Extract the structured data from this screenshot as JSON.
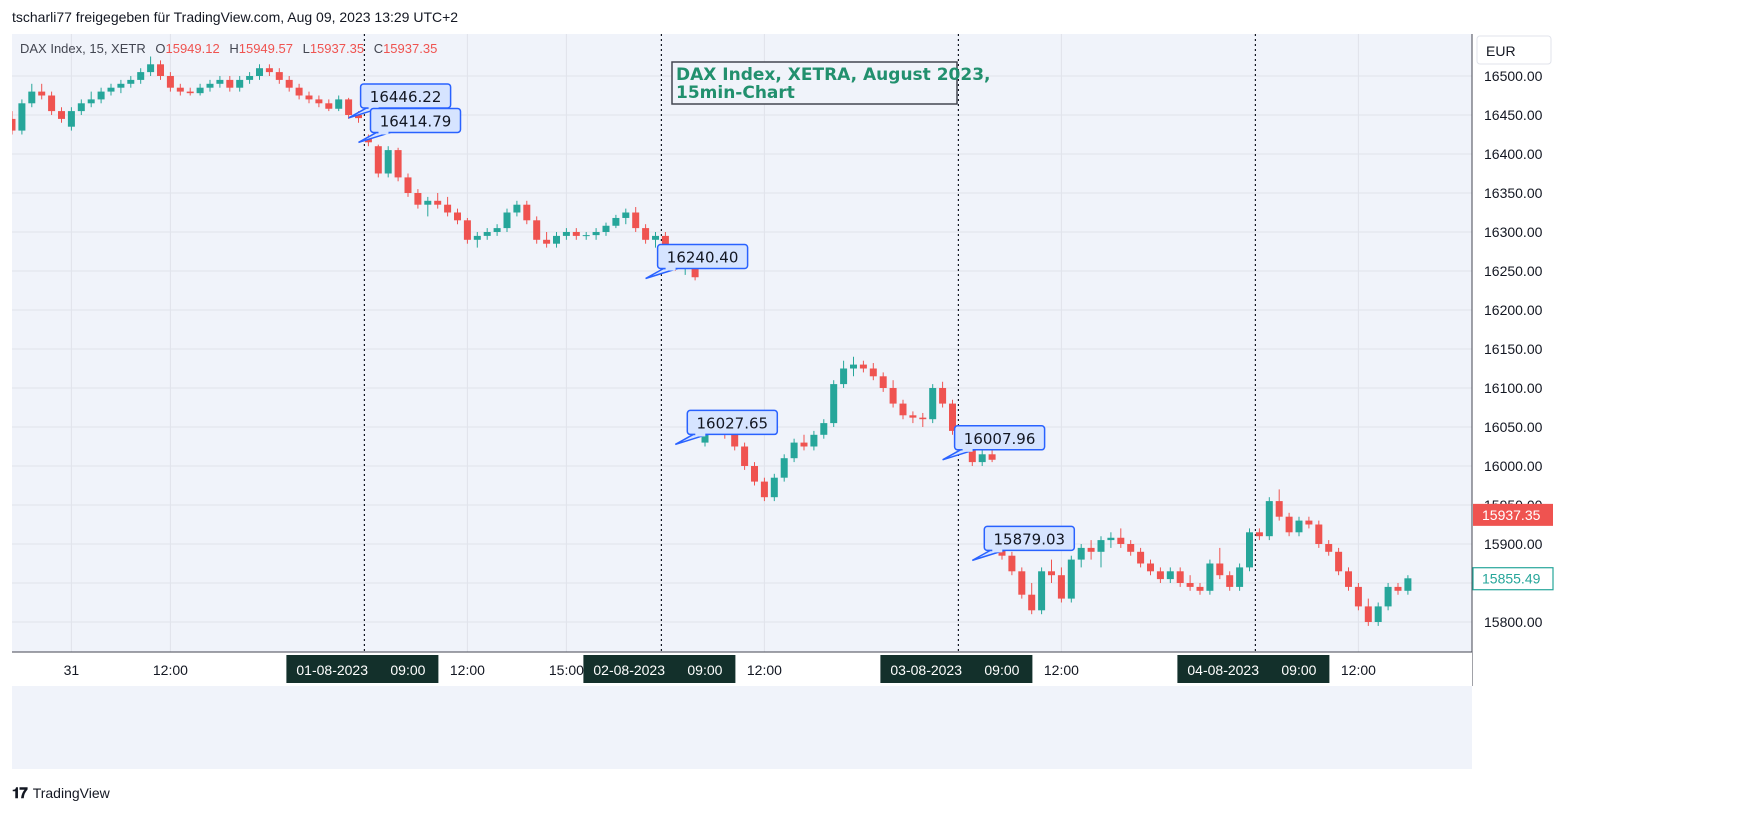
{
  "header": {
    "attribution": "tscharli77 freigegeben für TradingView.com, Aug 09, 2023 13:29 UTC+2"
  },
  "footer": {
    "brand": "TradingView",
    "logo_icon": "tradingview-logo-icon"
  },
  "legend": {
    "symbol": "DAX Index, 15, XETR",
    "o_label": "O",
    "o_value": "15949.12",
    "h_label": "H",
    "h_value": "15949.57",
    "l_label": "L",
    "l_value": "15937.35",
    "c_label": "C",
    "c_value": "15937.35"
  },
  "currency": "EUR",
  "colors": {
    "up": "#26a69a",
    "down": "#ef5350",
    "callout_fill": "#d6e4ff",
    "callout_stroke": "#2962ff",
    "title_text": "#22906e",
    "date_badge": "#13302b",
    "price_tag_red": "#ef5350",
    "price_tag_green": "#26a69a"
  },
  "chart_data": {
    "type": "candlestick",
    "title": "DAX Index, XETRA, August 2023, 15min-Chart",
    "ylim": [
      15750,
      16530
    ],
    "y_ticks": [
      "16500.00",
      "16450.00",
      "16400.00",
      "16350.00",
      "16300.00",
      "16250.00",
      "16200.00",
      "16150.00",
      "16100.00",
      "16050.00",
      "16000.00",
      "15950.00",
      "15900.00",
      "15850.00",
      "15800.00"
    ],
    "x_ticks": [
      {
        "label": "31",
        "bar": 6
      },
      {
        "label": "12:00",
        "bar": 16
      },
      {
        "label": "12:00",
        "bar": 46
      },
      {
        "label": "15:00",
        "bar": 56
      },
      {
        "label": "12:00",
        "bar": 76
      },
      {
        "label": "12:00",
        "bar": 106
      },
      {
        "label": "12:00",
        "bar": 136
      }
    ],
    "session_markers": [
      {
        "date": "01-08-2023",
        "time": "09:00",
        "bar": 36
      },
      {
        "date": "02-08-2023",
        "time": "09:00",
        "bar": 66
      },
      {
        "date": "03-08-2023",
        "time": "09:00",
        "bar": 96
      },
      {
        "date": "04-08-2023",
        "time": "09:00",
        "bar": 126
      }
    ],
    "price_tags": [
      {
        "value": "15937.35",
        "price": 15937.35,
        "style": "down"
      },
      {
        "value": "15855.49",
        "price": 15855.49,
        "style": "up"
      }
    ],
    "annotations": [
      {
        "text": "16446.22",
        "bar": 34,
        "price": 16446.22
      },
      {
        "text": "16414.79",
        "bar": 35,
        "price": 16414.79
      },
      {
        "text": "16240.40",
        "bar": 64,
        "price": 16240.4
      },
      {
        "text": "16027.65",
        "bar": 67,
        "price": 16027.65
      },
      {
        "text": "16007.96",
        "bar": 94,
        "price": 16007.96
      },
      {
        "text": "15879.03",
        "bar": 97,
        "price": 15879.03
      }
    ],
    "candles": [
      [
        16445,
        16455,
        16425,
        16430
      ],
      [
        16430,
        16470,
        16425,
        16465
      ],
      [
        16465,
        16490,
        16460,
        16480
      ],
      [
        16480,
        16490,
        16470,
        16475
      ],
      [
        16475,
        16480,
        16450,
        16455
      ],
      [
        16455,
        16460,
        16440,
        16445
      ],
      [
        16435,
        16460,
        16430,
        16455
      ],
      [
        16455,
        16470,
        16450,
        16465
      ],
      [
        16465,
        16480,
        16460,
        16470
      ],
      [
        16470,
        16485,
        16465,
        16480
      ],
      [
        16480,
        16490,
        16475,
        16485
      ],
      [
        16485,
        16495,
        16478,
        16490
      ],
      [
        16490,
        16500,
        16485,
        16495
      ],
      [
        16495,
        16510,
        16490,
        16505
      ],
      [
        16505,
        16525,
        16500,
        16515
      ],
      [
        16515,
        16520,
        16495,
        16500
      ],
      [
        16500,
        16505,
        16480,
        16485
      ],
      [
        16485,
        16490,
        16475,
        16480
      ],
      [
        16480,
        16485,
        16475,
        16478
      ],
      [
        16478,
        16490,
        16475,
        16485
      ],
      [
        16485,
        16495,
        16480,
        16490
      ],
      [
        16490,
        16500,
        16485,
        16495
      ],
      [
        16495,
        16500,
        16480,
        16485
      ],
      [
        16485,
        16500,
        16480,
        16495
      ],
      [
        16495,
        16505,
        16490,
        16500
      ],
      [
        16500,
        16515,
        16495,
        16510
      ],
      [
        16510,
        16515,
        16500,
        16505
      ],
      [
        16505,
        16510,
        16490,
        16495
      ],
      [
        16495,
        16500,
        16480,
        16485
      ],
      [
        16485,
        16490,
        16470,
        16475
      ],
      [
        16475,
        16480,
        16465,
        16470
      ],
      [
        16470,
        16475,
        16460,
        16465
      ],
      [
        16465,
        16470,
        16455,
        16458
      ],
      [
        16458,
        16475,
        16455,
        16470
      ],
      [
        16470,
        16472,
        16445,
        16450
      ],
      [
        16450,
        16455,
        16440,
        16446
      ],
      [
        16420,
        16425,
        16410,
        16415
      ],
      [
        16410,
        16412,
        16370,
        16375
      ],
      [
        16375,
        16410,
        16370,
        16405
      ],
      [
        16405,
        16408,
        16365,
        16370
      ],
      [
        16370,
        16375,
        16345,
        16350
      ],
      [
        16350,
        16355,
        16330,
        16335
      ],
      [
        16335,
        16345,
        16320,
        16340
      ],
      [
        16340,
        16350,
        16330,
        16335
      ],
      [
        16335,
        16345,
        16320,
        16325
      ],
      [
        16325,
        16330,
        16310,
        16315
      ],
      [
        16315,
        16318,
        16285,
        16290
      ],
      [
        16290,
        16300,
        16280,
        16295
      ],
      [
        16295,
        16305,
        16290,
        16300
      ],
      [
        16300,
        16310,
        16295,
        16305
      ],
      [
        16305,
        16330,
        16300,
        16325
      ],
      [
        16325,
        16340,
        16320,
        16335
      ],
      [
        16335,
        16340,
        16310,
        16315
      ],
      [
        16315,
        16320,
        16285,
        16290
      ],
      [
        16290,
        16300,
        16280,
        16285
      ],
      [
        16285,
        16300,
        16280,
        16295
      ],
      [
        16295,
        16305,
        16290,
        16300
      ],
      [
        16300,
        16305,
        16290,
        16295
      ],
      [
        16295,
        16300,
        16290,
        16296
      ],
      [
        16296,
        16305,
        16290,
        16300
      ],
      [
        16300,
        16312,
        16295,
        16308
      ],
      [
        16308,
        16322,
        16305,
        16318
      ],
      [
        16318,
        16330,
        16310,
        16325
      ],
      [
        16325,
        16332,
        16300,
        16305
      ],
      [
        16305,
        16310,
        16285,
        16290
      ],
      [
        16290,
        16300,
        16280,
        16295
      ],
      [
        16295,
        16300,
        16270,
        16275
      ],
      [
        16275,
        16280,
        16250,
        16255
      ],
      [
        16255,
        16265,
        16245,
        16262
      ],
      [
        16262,
        16265,
        16238,
        16242
      ],
      [
        16030,
        16060,
        16025,
        16045
      ],
      [
        16045,
        16060,
        16040,
        16050
      ],
      [
        16050,
        16060,
        16035,
        16045
      ],
      [
        16045,
        16050,
        16020,
        16025
      ],
      [
        16025,
        16030,
        15995,
        16000
      ],
      [
        16000,
        16005,
        15975,
        15980
      ],
      [
        15980,
        15985,
        15955,
        15960
      ],
      [
        15960,
        15990,
        15955,
        15985
      ],
      [
        15985,
        16015,
        15980,
        16010
      ],
      [
        16010,
        16035,
        16005,
        16030
      ],
      [
        16030,
        16040,
        16020,
        16025
      ],
      [
        16025,
        16045,
        16020,
        16040
      ],
      [
        16040,
        16060,
        16035,
        16055
      ],
      [
        16055,
        16110,
        16050,
        16105
      ],
      [
        16105,
        16135,
        16100,
        16125
      ],
      [
        16125,
        16140,
        16115,
        16130
      ],
      [
        16130,
        16135,
        16120,
        16125
      ],
      [
        16125,
        16132,
        16110,
        16115
      ],
      [
        16115,
        16120,
        16095,
        16100
      ],
      [
        16100,
        16110,
        16075,
        16080
      ],
      [
        16080,
        16085,
        16060,
        16065
      ],
      [
        16065,
        16070,
        16055,
        16062
      ],
      [
        16062,
        16068,
        16050,
        16060
      ],
      [
        16060,
        16105,
        16055,
        16100
      ],
      [
        16100,
        16108,
        16075,
        16080
      ],
      [
        16080,
        16085,
        16040,
        16045
      ],
      [
        16045,
        16050,
        16020,
        16025
      ],
      [
        16025,
        16030,
        16000,
        16005
      ],
      [
        16005,
        16020,
        16000,
        16015
      ],
      [
        16015,
        16020,
        16005,
        16008
      ],
      [
        15900,
        15910,
        15880,
        15885
      ],
      [
        15885,
        15890,
        15860,
        15865
      ],
      [
        15865,
        15870,
        15830,
        15835
      ],
      [
        15835,
        15850,
        15810,
        15815
      ],
      [
        15815,
        15870,
        15810,
        15865
      ],
      [
        15865,
        15880,
        15850,
        15860
      ],
      [
        15860,
        15870,
        15825,
        15830
      ],
      [
        15830,
        15885,
        15825,
        15880
      ],
      [
        15880,
        15900,
        15870,
        15895
      ],
      [
        15895,
        15905,
        15880,
        15890
      ],
      [
        15890,
        15910,
        15870,
        15905
      ],
      [
        15905,
        15915,
        15895,
        15908
      ],
      [
        15908,
        15920,
        15895,
        15900
      ],
      [
        15900,
        15905,
        15885,
        15890
      ],
      [
        15890,
        15895,
        15870,
        15875
      ],
      [
        15875,
        15880,
        15860,
        15865
      ],
      [
        15865,
        15870,
        15850,
        15855
      ],
      [
        15855,
        15870,
        15850,
        15865
      ],
      [
        15865,
        15870,
        15845,
        15850
      ],
      [
        15850,
        15860,
        15840,
        15845
      ],
      [
        15845,
        15850,
        15835,
        15840
      ],
      [
        15840,
        15880,
        15835,
        15875
      ],
      [
        15875,
        15895,
        15855,
        15860
      ],
      [
        15860,
        15865,
        15840,
        15845
      ],
      [
        15845,
        15875,
        15840,
        15870
      ],
      [
        15870,
        15920,
        15865,
        15915
      ],
      [
        15915,
        15920,
        15905,
        15910
      ],
      [
        15910,
        15960,
        15905,
        15955
      ],
      [
        15955,
        15970,
        15930,
        15935
      ],
      [
        15935,
        15940,
        15910,
        15915
      ],
      [
        15915,
        15935,
        15910,
        15930
      ],
      [
        15930,
        15935,
        15920,
        15925
      ],
      [
        15925,
        15930,
        15895,
        15900
      ],
      [
        15900,
        15905,
        15885,
        15890
      ],
      [
        15890,
        15895,
        15860,
        15865
      ],
      [
        15865,
        15870,
        15840,
        15845
      ],
      [
        15845,
        15850,
        15815,
        15820
      ],
      [
        15820,
        15830,
        15795,
        15800
      ],
      [
        15800,
        15825,
        15795,
        15820
      ],
      [
        15820,
        15850,
        15815,
        15845
      ],
      [
        15845,
        15850,
        15835,
        15840
      ],
      [
        15840,
        15860,
        15835,
        15856
      ]
    ]
  }
}
